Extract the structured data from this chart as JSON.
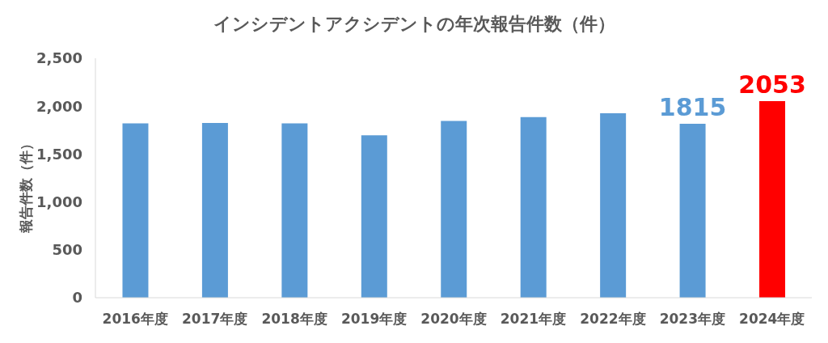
{
  "chart_data": {
    "type": "bar",
    "title": "インシデントアクシデントの年次報告件数（件）",
    "ylabel": "報告件数（件）",
    "categories": [
      "2016年度",
      "2017年度",
      "2018年度",
      "2019年度",
      "2020年度",
      "2021年度",
      "2022年度",
      "2023年度",
      "2024年度"
    ],
    "values": [
      1820,
      1825,
      1820,
      1695,
      1845,
      1885,
      1925,
      1815,
      2053
    ],
    "colors": [
      "#5b9bd5",
      "#5b9bd5",
      "#5b9bd5",
      "#5b9bd5",
      "#5b9bd5",
      "#5b9bd5",
      "#5b9bd5",
      "#5b9bd5",
      "#ff0000"
    ],
    "value_labels": [
      null,
      null,
      null,
      null,
      null,
      null,
      null,
      "1815",
      "2053"
    ],
    "ylim": [
      0,
      2500
    ],
    "yticks": [
      0,
      {
        "value": 500,
        "label": "500"
      },
      {
        "value": 1000,
        "label": "1,000"
      },
      {
        "value": 1500,
        "label": "1,500"
      },
      {
        "value": 2000,
        "label": "2,000"
      },
      {
        "value": 2500,
        "label": "2,500"
      }
    ],
    "grid": false,
    "legend": false
  }
}
